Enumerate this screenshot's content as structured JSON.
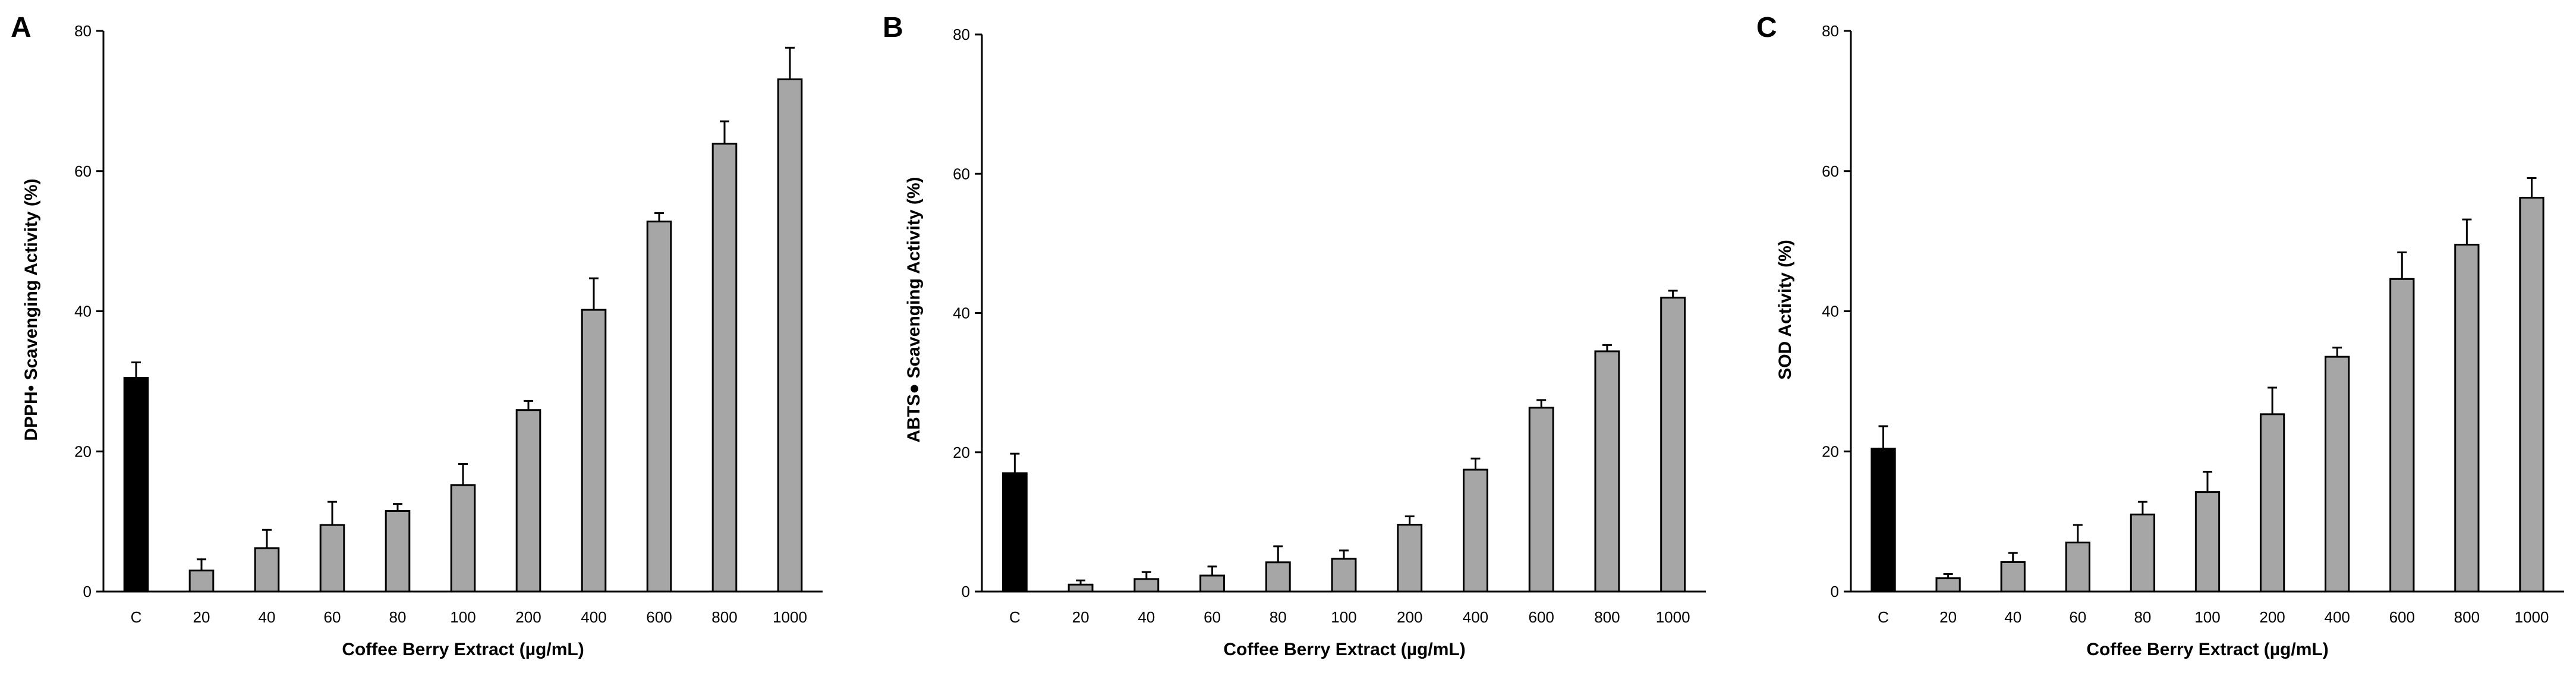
{
  "chart_data": [
    {
      "panel": "A",
      "type": "bar",
      "categories": [
        "C",
        "20",
        "40",
        "60",
        "80",
        "100",
        "200",
        "400",
        "600",
        "800",
        "1000"
      ],
      "values": [
        30.5,
        3.0,
        6.2,
        9.5,
        11.5,
        15.2,
        25.9,
        40.2,
        52.8,
        63.9,
        73.1
      ],
      "errors": [
        2.2,
        1.6,
        2.6,
        3.3,
        1.0,
        3.0,
        1.3,
        4.5,
        1.2,
        3.2,
        4.5
      ],
      "xlabel": "Coffee Berry Extract (µg/mL)",
      "ylabel": "DPPH• Scavenging Activity (%)",
      "ylim": [
        0,
        80
      ],
      "yticks": [
        "0",
        "20",
        "40",
        "60",
        "80"
      ],
      "grid": false,
      "bar_colors": {
        "control": "#000000",
        "extract": "#a6a6a6"
      }
    },
    {
      "panel": "B",
      "type": "bar",
      "categories": [
        "C",
        "20",
        "40",
        "60",
        "80",
        "100",
        "200",
        "400",
        "600",
        "800",
        "1000"
      ],
      "values": [
        17.0,
        1.0,
        1.8,
        2.3,
        4.2,
        4.7,
        9.6,
        17.5,
        26.4,
        34.5,
        42.2
      ],
      "errors": [
        2.8,
        0.6,
        1.0,
        1.3,
        2.3,
        1.2,
        1.2,
        1.6,
        1.1,
        0.9,
        1.0
      ],
      "xlabel": "Coffee Berry Extract (µg/mL)",
      "ylabel": "ABTS● Scavenging Activity (%)",
      "ylim": [
        0,
        80
      ],
      "yticks": [
        "0",
        "20",
        "40",
        "60",
        "80"
      ],
      "grid": false,
      "bar_colors": {
        "control": "#000000",
        "extract": "#a6a6a6"
      }
    },
    {
      "panel": "C",
      "type": "bar",
      "categories": [
        "C",
        "20",
        "40",
        "60",
        "80",
        "100",
        "200",
        "400",
        "600",
        "800",
        "1000"
      ],
      "values": [
        20.4,
        1.9,
        4.2,
        7.0,
        11.0,
        14.2,
        25.3,
        33.5,
        44.6,
        49.5,
        56.2
      ],
      "errors": [
        3.2,
        0.6,
        1.3,
        2.5,
        1.8,
        2.9,
        3.8,
        1.3,
        3.8,
        3.6,
        2.8
      ],
      "xlabel": "Coffee Berry Extract (µg/mL)",
      "ylabel": "SOD Activity (%)",
      "ylim": [
        0,
        80
      ],
      "yticks": [
        "0",
        "20",
        "40",
        "60",
        "80"
      ],
      "grid": false,
      "bar_colors": {
        "control": "#000000",
        "extract": "#a6a6a6"
      }
    }
  ]
}
